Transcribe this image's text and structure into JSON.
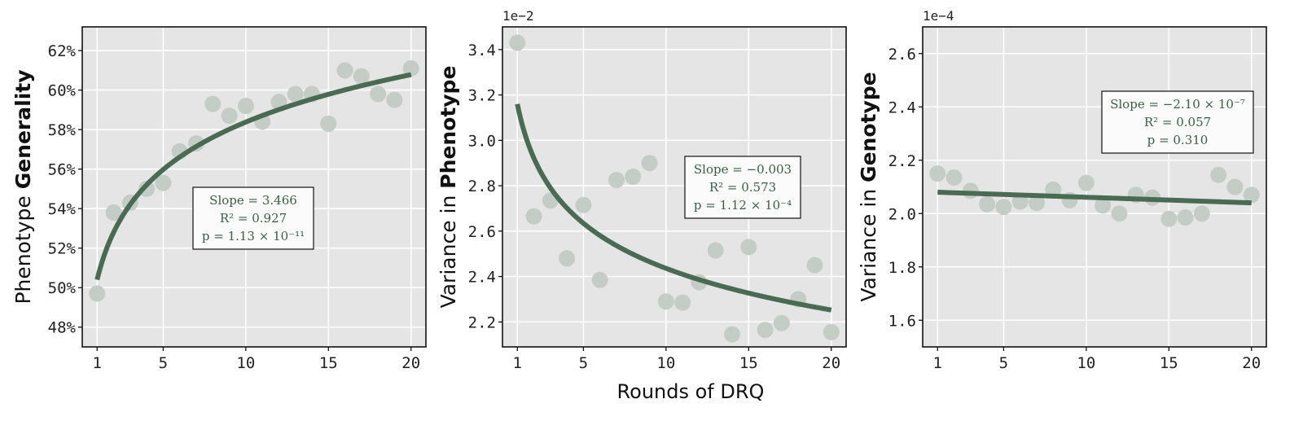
{
  "figure": {
    "xlabel": "Rounds of DRQ",
    "xticks": [
      1,
      5,
      10,
      15,
      20
    ],
    "colors": {
      "panel_bg": "#e5e5e5",
      "grid": "#ffffff",
      "point": "#c4cdc5",
      "curve": "#4a6b53",
      "annotation_text": "#3a5e45"
    }
  },
  "chart_data": [
    {
      "type": "scatter",
      "title": "",
      "ylabel_prefix": "Phenotype ",
      "ylabel_bold": "Generality",
      "x_scale_note": "log-fit trend",
      "sci_label": "",
      "xlim": [
        0.1,
        20.9
      ],
      "ylim": [
        47.0,
        63.2
      ],
      "yticks": [
        48,
        50,
        52,
        54,
        56,
        58,
        60,
        62
      ],
      "ytick_labels": [
        "48%",
        "50%",
        "52%",
        "54%",
        "56%",
        "58%",
        "60%",
        "62%"
      ],
      "points": {
        "x": [
          1,
          2,
          3,
          4,
          5,
          6,
          7,
          8,
          9,
          10,
          11,
          12,
          13,
          14,
          15,
          16,
          17,
          18,
          19,
          20
        ],
        "y": [
          49.7,
          53.8,
          54.3,
          55.0,
          55.3,
          56.9,
          57.3,
          59.3,
          58.7,
          59.2,
          58.4,
          59.4,
          59.8,
          59.8,
          58.3,
          61.0,
          60.7,
          59.8,
          59.5,
          61.1
        ]
      },
      "trend": {
        "form": "log",
        "a": 50.4,
        "b": 3.466
      },
      "annotation": {
        "slope": "Slope = 3.466",
        "r2": "R² = 0.927",
        "p": "p = 1.13 × 10⁻¹¹"
      }
    },
    {
      "type": "scatter",
      "title": "",
      "ylabel_prefix": "Variance in ",
      "ylabel_bold": "Phenotype",
      "sci_label": "1e−2",
      "xlim": [
        0.1,
        20.9
      ],
      "ylim": [
        2.09,
        3.5
      ],
      "yticks": [
        2.2,
        2.4,
        2.6,
        2.8,
        3.0,
        3.2,
        3.4
      ],
      "ytick_labels": [
        "2.2",
        "2.4",
        "2.6",
        "2.8",
        "3.0",
        "3.2",
        "3.4"
      ],
      "points": {
        "x": [
          1,
          2,
          3,
          4,
          5,
          6,
          7,
          8,
          9,
          10,
          11,
          12,
          13,
          14,
          15,
          16,
          17,
          18,
          19,
          20
        ],
        "y": [
          3.43,
          2.665,
          2.735,
          2.48,
          2.715,
          2.385,
          2.825,
          2.84,
          2.9,
          2.29,
          2.285,
          2.375,
          2.515,
          2.145,
          2.53,
          2.165,
          2.195,
          2.3,
          2.45,
          2.155
        ]
      },
      "trend": {
        "form": "power",
        "a": 3.16,
        "b": -0.113
      },
      "annotation": {
        "slope": "Slope = −0.003",
        "r2": "R² = 0.573",
        "p": "p = 1.12 × 10⁻⁴"
      }
    },
    {
      "type": "scatter",
      "title": "",
      "ylabel_prefix": "Variance in ",
      "ylabel_bold": "Genotype",
      "sci_label": "1e−4",
      "xlim": [
        0.1,
        20.9
      ],
      "ylim": [
        1.5,
        2.7
      ],
      "yticks": [
        1.6,
        1.8,
        2.0,
        2.2,
        2.4,
        2.6
      ],
      "ytick_labels": [
        "1.6",
        "1.8",
        "2.0",
        "2.2",
        "2.4",
        "2.6"
      ],
      "points": {
        "x": [
          1,
          2,
          3,
          4,
          5,
          6,
          7,
          8,
          9,
          10,
          11,
          12,
          13,
          14,
          15,
          16,
          17,
          18,
          19,
          20
        ],
        "y": [
          2.15,
          2.135,
          2.085,
          2.035,
          2.025,
          2.045,
          2.04,
          2.09,
          2.05,
          2.115,
          2.03,
          2.0,
          2.07,
          2.06,
          1.98,
          1.985,
          2.0,
          2.145,
          2.1,
          2.07
        ]
      },
      "trend": {
        "form": "linear",
        "a": 2.08,
        "b": -0.0021
      },
      "annotation": {
        "slope": "Slope = −2.10 × 10⁻⁷",
        "r2": "R² = 0.057",
        "p": "p = 0.310"
      }
    }
  ]
}
